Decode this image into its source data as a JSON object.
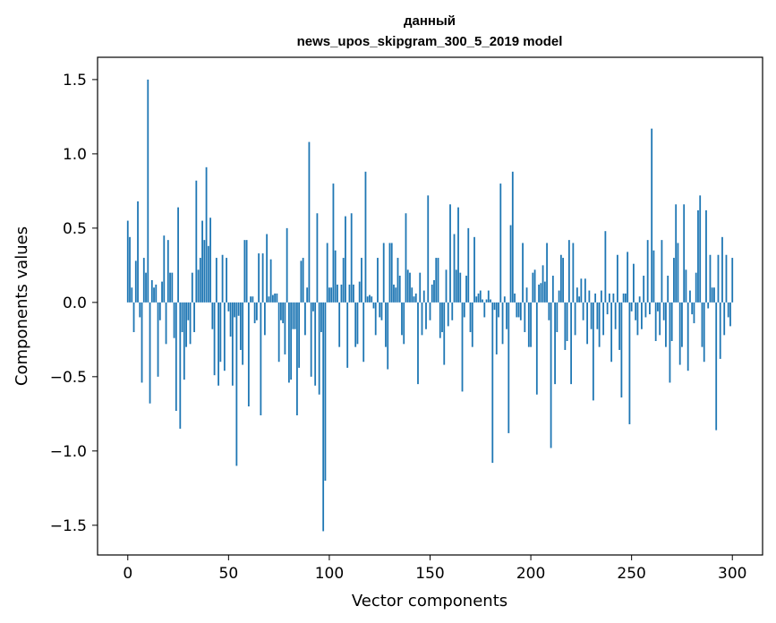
{
  "chart_data": {
    "type": "bar",
    "title_line1": "данный",
    "title_line2": "news_upos_skipgram_300_5_2019 model",
    "xlabel": "Vector components",
    "ylabel": "Components values",
    "xlim": [
      -15,
      315
    ],
    "ylim": [
      -1.7,
      1.65
    ],
    "xticks": [
      0,
      50,
      100,
      150,
      200,
      250,
      300
    ],
    "yticks": [
      -1.5,
      -1.0,
      -0.5,
      0.0,
      0.5,
      1.0,
      1.5
    ],
    "ytick_labels": [
      "−1.5",
      "−1.0",
      "−0.5",
      "0.0",
      "0.5",
      "1.0",
      "1.5"
    ],
    "bar_color": "#1f77b4",
    "values": [
      0.55,
      0.44,
      0.1,
      -0.2,
      0.28,
      0.68,
      -0.1,
      -0.54,
      0.3,
      0.2,
      1.5,
      -0.68,
      0.15,
      0.1,
      0.12,
      -0.5,
      -0.12,
      0.14,
      0.45,
      -0.28,
      0.42,
      0.2,
      0.2,
      -0.24,
      -0.73,
      0.64,
      -0.85,
      -0.2,
      -0.52,
      -0.3,
      -0.12,
      -0.28,
      0.2,
      -0.2,
      0.82,
      0.22,
      0.3,
      0.55,
      0.42,
      0.91,
      0.38,
      0.57,
      -0.18,
      -0.49,
      0.3,
      -0.56,
      -0.4,
      0.32,
      -0.46,
      0.3,
      -0.06,
      -0.23,
      -0.56,
      -0.1,
      -1.1,
      -0.09,
      -0.32,
      -0.42,
      0.42,
      0.42,
      -0.7,
      0.04,
      0.04,
      -0.14,
      -0.12,
      0.33,
      -0.76,
      0.33,
      -0.22,
      0.46,
      0.04,
      0.29,
      0.05,
      0.06,
      0.06,
      -0.4,
      -0.12,
      -0.14,
      -0.35,
      0.5,
      -0.54,
      -0.52,
      -0.18,
      -0.18,
      -0.76,
      -0.44,
      0.28,
      0.3,
      -0.22,
      0.1,
      1.08,
      -0.5,
      -0.06,
      -0.56,
      0.6,
      -0.62,
      -0.2,
      -1.54,
      -1.2,
      0.4,
      0.1,
      0.1,
      0.8,
      0.35,
      0.12,
      -0.3,
      0.12,
      0.3,
      0.58,
      -0.44,
      0.12,
      0.6,
      0.12,
      -0.3,
      -0.28,
      0.14,
      0.3,
      -0.4,
      0.88,
      0.04,
      0.05,
      0.04,
      -0.04,
      -0.22,
      0.3,
      -0.1,
      -0.12,
      0.4,
      -0.3,
      -0.45,
      0.4,
      0.4,
      0.12,
      0.1,
      0.3,
      0.18,
      -0.22,
      -0.28,
      0.6,
      0.22,
      0.2,
      0.1,
      0.04,
      0.06,
      -0.55,
      0.2,
      -0.22,
      0.08,
      -0.18,
      0.72,
      -0.12,
      0.12,
      0.15,
      0.3,
      0.3,
      -0.24,
      -0.2,
      -0.42,
      0.22,
      -0.16,
      0.66,
      -0.12,
      0.46,
      0.22,
      0.64,
      0.2,
      -0.6,
      -0.1,
      0.18,
      0.5,
      -0.2,
      -0.3,
      0.44,
      0.04,
      0.06,
      0.08,
      0.02,
      -0.1,
      0.02,
      0.08,
      0.02,
      -1.08,
      -0.05,
      -0.35,
      -0.1,
      0.8,
      -0.28,
      0.04,
      -0.18,
      -0.88,
      0.52,
      0.88,
      0.06,
      -0.1,
      -0.1,
      -0.12,
      0.4,
      -0.2,
      0.1,
      -0.3,
      -0.3,
      0.2,
      0.22,
      -0.62,
      0.12,
      0.13,
      0.25,
      0.14,
      0.4,
      -0.12,
      -0.98,
      0.18,
      -0.55,
      -0.2,
      0.08,
      0.32,
      0.3,
      -0.32,
      -0.26,
      0.42,
      -0.55,
      0.4,
      -0.22,
      0.1,
      0.04,
      0.16,
      -0.12,
      0.16,
      -0.28,
      0.08,
      -0.18,
      -0.66,
      0.06,
      -0.18,
      -0.3,
      0.08,
      -0.22,
      0.48,
      -0.08,
      0.06,
      -0.4,
      0.06,
      -0.18,
      0.32,
      -0.32,
      -0.64,
      0.06,
      0.06,
      0.34,
      -0.82,
      -0.06,
      0.26,
      -0.12,
      -0.22,
      0.04,
      -0.18,
      0.18,
      -0.1,
      0.42,
      -0.08,
      1.17,
      0.35,
      -0.26,
      -0.06,
      -0.22,
      0.42,
      -0.12,
      -0.3,
      0.18,
      -0.54,
      -0.26,
      0.3,
      0.66,
      0.4,
      -0.42,
      -0.3,
      0.66,
      0.22,
      -0.46,
      0.08,
      -0.08,
      -0.14,
      0.2,
      0.62,
      0.72,
      -0.3,
      -0.4,
      0.62,
      -0.04,
      0.32,
      0.1,
      0.1,
      -0.86,
      0.32,
      -0.38,
      0.44,
      -0.22,
      0.32,
      -0.1,
      -0.16,
      0.3
    ]
  }
}
